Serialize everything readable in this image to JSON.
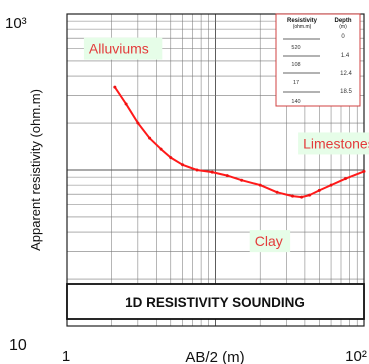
{
  "chart_data": {
    "type": "line",
    "title": "1D RESISTIVITY SOUNDING",
    "xlabel": "AB/2 (m)",
    "ylabel": "Apparent resistivity (ohm.m)",
    "xscale": "log",
    "yscale": "log",
    "xlim": [
      1,
      100
    ],
    "ylim": [
      10,
      1000
    ],
    "x_tick_labels": [
      "1",
      "10²"
    ],
    "y_tick_labels": [
      "10³",
      "10"
    ],
    "grid": true,
    "series": [
      {
        "color": "#ff1a1a",
        "x": [
          2.1,
          2.5,
          3.0,
          3.6,
          4.3,
          5.0,
          6.0,
          7.5,
          9.5,
          12,
          15,
          20,
          26,
          33,
          38,
          43,
          50,
          60,
          75,
          100
        ],
        "y": [
          340,
          265,
          200,
          160,
          136,
          120,
          108,
          100,
          97,
          92,
          86,
          80,
          72,
          68,
          67,
          69,
          74,
          80,
          88,
          98
        ]
      }
    ],
    "annotations": [
      {
        "text": "Alluviums",
        "x": 1.3,
        "y": 600
      },
      {
        "text": "Limestones",
        "x": 36,
        "y": 148
      },
      {
        "text": "Clay",
        "x": 17,
        "y": 35
      }
    ],
    "table": {
      "headers": [
        "Resistivity (ohm.m)",
        "Depth (m)"
      ],
      "header_lines": [
        [
          "Resistivity",
          "(ohm.m)"
        ],
        [
          "Depth",
          "(m)"
        ]
      ],
      "rows": [
        {
          "resistivity": "",
          "depth": "0"
        },
        {
          "resistivity": "520",
          "depth": "1.4"
        },
        {
          "resistivity": "108",
          "depth": "12.4"
        },
        {
          "resistivity": "17",
          "depth": "18.5"
        },
        {
          "resistivity": "140",
          "depth": ""
        }
      ]
    },
    "colors": {
      "curve": "#ff1a1a",
      "label_bg": "#e6fde8",
      "label_text": "#e33b3b"
    }
  }
}
